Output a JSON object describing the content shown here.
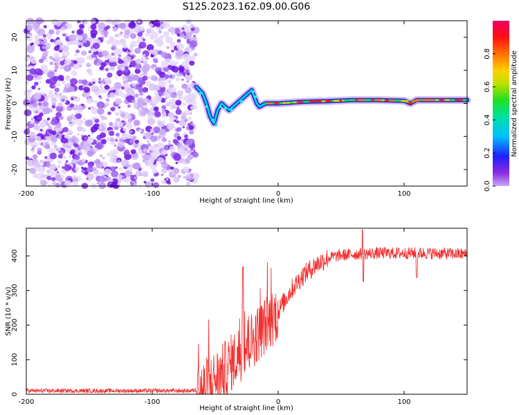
{
  "title": "S125.2023.162.09.00.G06",
  "spectrogram": {
    "xlabel": "Height of straight line (km)",
    "ylabel": "Frequency (Hz)",
    "xlim": [
      -200,
      150
    ],
    "ylim": [
      -25,
      25
    ],
    "xticks": [
      -200,
      -100,
      0,
      100
    ],
    "yticks": [
      -20,
      -10,
      0,
      10,
      20
    ],
    "noise_region_x": [
      -200,
      -65
    ],
    "signal_frequency_track": {
      "x": [
        -65,
        -60,
        -57,
        -54,
        -51,
        -48,
        -45,
        -42,
        -39,
        -36,
        -33,
        -30,
        -27,
        -24,
        -21,
        -19,
        -17,
        -15,
        -10,
        0,
        20,
        40,
        60,
        80,
        100,
        105,
        110,
        130,
        150
      ],
      "y": [
        5,
        3,
        0,
        -4,
        -6,
        -2,
        0,
        -1,
        -2,
        -1,
        0,
        1,
        2,
        3,
        4,
        2,
        0,
        -1,
        0,
        0,
        0.5,
        0.7,
        1,
        1,
        0.8,
        0,
        1,
        1,
        1
      ]
    },
    "colorbar": {
      "label": "Normalized spectral amplitude",
      "range": [
        0,
        1
      ],
      "ticks": [
        "0.0",
        "0.2",
        "0.4",
        "0.6",
        "0.8"
      ]
    }
  },
  "snr": {
    "xlabel": "Height of straight line (km)",
    "ylabel": "SNR (10 * v/v)",
    "xlim": [
      -200,
      150
    ],
    "ylim": [
      0,
      480
    ],
    "xticks": [
      -200,
      -100,
      0,
      100
    ],
    "yticks": [
      0,
      100,
      200,
      300,
      400
    ],
    "line_color": "#f03030",
    "trend": {
      "x": [
        -200,
        -70,
        -60,
        -45,
        -30,
        -15,
        0,
        10,
        20,
        30,
        40,
        50,
        60,
        80,
        100,
        120,
        150
      ],
      "y": [
        10,
        10,
        15,
        60,
        120,
        180,
        240,
        300,
        345,
        375,
        395,
        402,
        405,
        408,
        408,
        408,
        405
      ]
    }
  },
  "chart_data": [
    {
      "type": "heatmap",
      "title": "S125.2023.162.09.00.G06",
      "xlabel": "Height of straight line (km)",
      "ylabel": "Frequency (Hz)",
      "xlim": [
        -200,
        150
      ],
      "ylim": [
        -25,
        25
      ],
      "colorbar_label": "Normalized spectral amplitude",
      "colorbar_range": [
        0,
        1
      ]
    },
    {
      "type": "line",
      "xlabel": "Height of straight line (km)",
      "ylabel": "SNR (10 * v/v)",
      "xlim": [
        -200,
        150
      ],
      "ylim": [
        0,
        480
      ]
    }
  ]
}
